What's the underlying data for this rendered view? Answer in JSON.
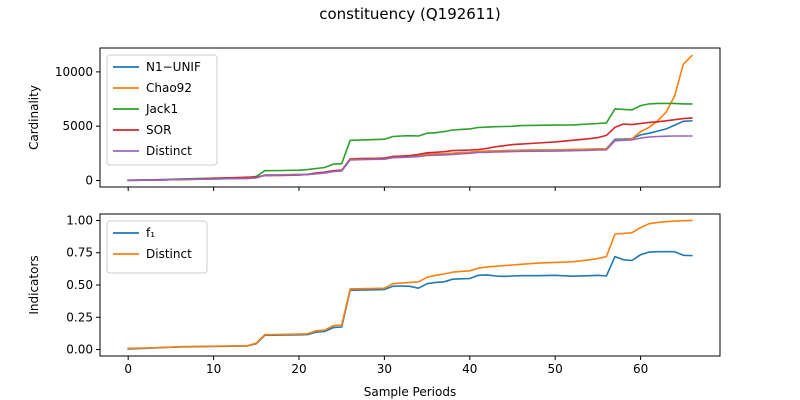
{
  "figure": {
    "title": "constituency (Q192611)",
    "xlabel": "Sample Periods"
  },
  "chart_data": [
    {
      "type": "line",
      "ylabel": "Cardinality",
      "xlim": [
        -3.3,
        69.3
      ],
      "ylim": [
        -600,
        12200
      ],
      "xticks": [
        0,
        10,
        20,
        30,
        40,
        50,
        60
      ],
      "yticks": [
        0,
        5000,
        10000
      ],
      "ytick_labels": [
        "0",
        "5000",
        "10000"
      ],
      "show_xtick_labels": false,
      "grid": false,
      "legend_position": "upper-left",
      "x": [
        0,
        2,
        4,
        6,
        8,
        10,
        12,
        14,
        15,
        16,
        18,
        20,
        21,
        22,
        23,
        24,
        25,
        26,
        28,
        30,
        31,
        32,
        33,
        34,
        35,
        36,
        37,
        38,
        39,
        40,
        41,
        42,
        43,
        44,
        45,
        46,
        48,
        50,
        52,
        54,
        55,
        56,
        57,
        58,
        59,
        60,
        61,
        62,
        63,
        64,
        65,
        66
      ],
      "series": [
        {
          "name": "N1−UNIF",
          "color": "#1f77b4",
          "values": [
            20,
            30,
            50,
            90,
            120,
            150,
            170,
            200,
            260,
            500,
            520,
            540,
            560,
            650,
            720,
            860,
            920,
            2000,
            2030,
            2060,
            2200,
            2230,
            2250,
            2300,
            2400,
            2430,
            2460,
            2500,
            2560,
            2600,
            2680,
            2700,
            2720,
            2740,
            2760,
            2790,
            2800,
            2810,
            2840,
            2880,
            2910,
            2930,
            3800,
            3820,
            3870,
            4200,
            4350,
            4550,
            4750,
            5100,
            5450,
            5500
          ]
        },
        {
          "name": "Chao92",
          "color": "#ff7f0e",
          "values": [
            20,
            30,
            50,
            90,
            120,
            150,
            170,
            200,
            260,
            500,
            520,
            540,
            560,
            650,
            720,
            860,
            920,
            2000,
            2030,
            2060,
            2200,
            2230,
            2250,
            2300,
            2400,
            2430,
            2460,
            2500,
            2560,
            2600,
            2680,
            2700,
            2720,
            2740,
            2760,
            2790,
            2800,
            2810,
            2840,
            2880,
            2910,
            2930,
            3700,
            3750,
            3850,
            4500,
            4900,
            5500,
            6300,
            7800,
            10700,
            11500
          ]
        },
        {
          "name": "Jack1",
          "color": "#2ca02c",
          "values": [
            30,
            50,
            80,
            140,
            180,
            210,
            240,
            260,
            380,
            900,
            920,
            950,
            1000,
            1100,
            1200,
            1500,
            1550,
            3700,
            3750,
            3800,
            4050,
            4100,
            4120,
            4100,
            4350,
            4400,
            4500,
            4650,
            4700,
            4750,
            4880,
            4920,
            4950,
            4970,
            4990,
            5050,
            5080,
            5100,
            5120,
            5200,
            5250,
            5300,
            6600,
            6550,
            6500,
            6900,
            7050,
            7100,
            7100,
            7100,
            7050,
            7050
          ]
        },
        {
          "name": "SOR",
          "color": "#d62728",
          "values": [
            20,
            40,
            60,
            100,
            140,
            200,
            250,
            300,
            320,
            450,
            470,
            500,
            560,
            700,
            760,
            900,
            950,
            1950,
            2000,
            2050,
            2200,
            2250,
            2300,
            2400,
            2550,
            2600,
            2650,
            2750,
            2780,
            2800,
            2850,
            2950,
            3100,
            3200,
            3300,
            3350,
            3450,
            3550,
            3700,
            3850,
            3950,
            4150,
            4900,
            5200,
            5150,
            5250,
            5350,
            5400,
            5500,
            5600,
            5700,
            5750
          ]
        },
        {
          "name": "Distinct",
          "color": "#9467bd",
          "values": [
            20,
            30,
            50,
            90,
            110,
            140,
            160,
            190,
            240,
            480,
            500,
            520,
            540,
            620,
            680,
            820,
            870,
            1900,
            1930,
            1960,
            2100,
            2130,
            2150,
            2200,
            2300,
            2330,
            2360,
            2400,
            2460,
            2500,
            2580,
            2600,
            2620,
            2640,
            2660,
            2690,
            2700,
            2710,
            2740,
            2780,
            2810,
            2830,
            3650,
            3700,
            3750,
            3900,
            4000,
            4050,
            4080,
            4100,
            4100,
            4100
          ]
        }
      ]
    },
    {
      "type": "line",
      "ylabel": "Indicators",
      "xlim": [
        -3.3,
        69.3
      ],
      "ylim": [
        -0.05,
        1.05
      ],
      "xticks": [
        0,
        10,
        20,
        30,
        40,
        50,
        60
      ],
      "xtick_labels": [
        "0",
        "10",
        "20",
        "30",
        "40",
        "50",
        "60"
      ],
      "yticks": [
        0,
        0.25,
        0.5,
        0.75,
        1.0
      ],
      "ytick_labels": [
        "0.00",
        "0.25",
        "0.50",
        "0.75",
        "1.00"
      ],
      "grid": false,
      "legend_position": "upper-left",
      "x": [
        0,
        2,
        4,
        6,
        8,
        10,
        12,
        14,
        15,
        16,
        18,
        20,
        21,
        22,
        23,
        24,
        25,
        26,
        28,
        30,
        31,
        32,
        33,
        34,
        35,
        36,
        37,
        38,
        39,
        40,
        41,
        42,
        43,
        44,
        45,
        46,
        48,
        50,
        52,
        54,
        55,
        56,
        57,
        58,
        59,
        60,
        61,
        62,
        63,
        64,
        65,
        66
      ],
      "series": [
        {
          "name": "f₁",
          "color": "#1f77b4",
          "values": [
            0.005,
            0.01,
            0.015,
            0.02,
            0.022,
            0.024,
            0.026,
            0.028,
            0.045,
            0.11,
            0.112,
            0.114,
            0.116,
            0.135,
            0.14,
            0.17,
            0.175,
            0.46,
            0.462,
            0.465,
            0.49,
            0.492,
            0.49,
            0.475,
            0.51,
            0.52,
            0.525,
            0.545,
            0.548,
            0.55,
            0.575,
            0.578,
            0.57,
            0.567,
            0.57,
            0.572,
            0.572,
            0.575,
            0.568,
            0.572,
            0.575,
            0.57,
            0.72,
            0.695,
            0.69,
            0.735,
            0.755,
            0.758,
            0.758,
            0.758,
            0.73,
            0.728
          ]
        },
        {
          "name": "Distinct",
          "color": "#ff7f0e",
          "values": [
            0.01,
            0.012,
            0.016,
            0.022,
            0.024,
            0.026,
            0.028,
            0.03,
            0.05,
            0.115,
            0.117,
            0.12,
            0.122,
            0.145,
            0.15,
            0.185,
            0.19,
            0.47,
            0.472,
            0.475,
            0.51,
            0.515,
            0.52,
            0.525,
            0.56,
            0.575,
            0.585,
            0.6,
            0.605,
            0.61,
            0.63,
            0.64,
            0.645,
            0.65,
            0.655,
            0.66,
            0.67,
            0.675,
            0.68,
            0.695,
            0.705,
            0.72,
            0.895,
            0.9,
            0.905,
            0.945,
            0.975,
            0.985,
            0.99,
            0.995,
            0.998,
            1.0
          ]
        }
      ]
    }
  ]
}
